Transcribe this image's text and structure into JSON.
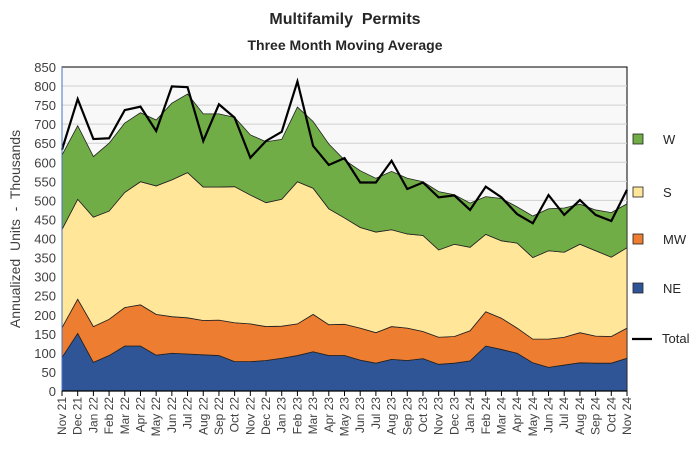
{
  "chart_data": {
    "type": "area",
    "stacked": true,
    "title": "Multifamily  Permits",
    "subtitle": "Three Month Moving Average",
    "xlabel": "",
    "ylabel": "Annualized  Units  -  Thousands",
    "ylim": [
      0,
      850
    ],
    "yticks": [
      0,
      50,
      100,
      150,
      200,
      250,
      300,
      350,
      400,
      450,
      500,
      550,
      600,
      650,
      700,
      750,
      800,
      850
    ],
    "grid": true,
    "legend_position": "right",
    "categories": [
      "Nov 21",
      "Dec 21",
      "Jan 22",
      "Feb 22",
      "Mar 22",
      "Apr 22",
      "May 22",
      "Jun 22",
      "Jul 22",
      "Aug 22",
      "Sep 22",
      "Oct 22",
      "Nov 22",
      "Dec 22",
      "Jan 23",
      "Feb 23",
      "Mar 23",
      "Apr 23",
      "May 23",
      "Jun 23",
      "Jul 23",
      "Aug 23",
      "Sep 23",
      "Oct 23",
      "Nov 23",
      "Dec 23",
      "Jan 24",
      "Feb 24",
      "Mar 24",
      "Apr 24",
      "May 24",
      "Jun 24",
      "Jul 24",
      "Aug 24",
      "Sep 24",
      "Oct 24",
      "Nov 24"
    ],
    "series": [
      {
        "name": "NE",
        "color": "#2f5597",
        "values": [
          88,
          151,
          75,
          93,
          118,
          118,
          94,
          99,
          97,
          95,
          93,
          77,
          77,
          80,
          86,
          93,
          103,
          93,
          93,
          81,
          73,
          83,
          80,
          85,
          70,
          73,
          79,
          118,
          109,
          99,
          74,
          62,
          68,
          74,
          73,
          73,
          86
        ]
      },
      {
        "name": "MW",
        "color": "#ed7d31",
        "values": [
          78,
          90,
          94,
          95,
          101,
          108,
          107,
          96,
          95,
          90,
          93,
          102,
          99,
          89,
          84,
          83,
          98,
          81,
          82,
          84,
          80,
          86,
          85,
          71,
          71,
          70,
          79,
          90,
          82,
          66,
          62,
          74,
          73,
          79,
          71,
          70,
          79
        ]
      },
      {
        "name": "S",
        "color": "#ffe699",
        "values": [
          258,
          262,
          287,
          284,
          302,
          323,
          337,
          359,
          381,
          350,
          349,
          357,
          338,
          325,
          333,
          373,
          331,
          304,
          279,
          264,
          264,
          254,
          247,
          252,
          229,
          242,
          219,
          203,
          203,
          223,
          214,
          232,
          223,
          232,
          224,
          208,
          211
        ]
      },
      {
        "name": "W",
        "color": "#70ad47",
        "values": [
          195,
          193,
          159,
          178,
          182,
          181,
          173,
          201,
          206,
          192,
          192,
          182,
          158,
          160,
          157,
          196,
          175,
          170,
          152,
          149,
          141,
          153,
          146,
          141,
          153,
          130,
          116,
          99,
          111,
          95,
          109,
          110,
          116,
          105,
          107,
          117,
          115
        ]
      }
    ],
    "total": {
      "name": "Total",
      "color": "#000000",
      "values": [
        633,
        766,
        661,
        663,
        737,
        746,
        682,
        799,
        797,
        656,
        752,
        717,
        612,
        656,
        680,
        812,
        643,
        593,
        611,
        547,
        547,
        604,
        530,
        547,
        508,
        513,
        475,
        536,
        508,
        464,
        440,
        514,
        462,
        501,
        462,
        446,
        528
      ]
    },
    "legend": [
      "W",
      "S",
      "MW",
      "NE",
      "Total"
    ]
  }
}
